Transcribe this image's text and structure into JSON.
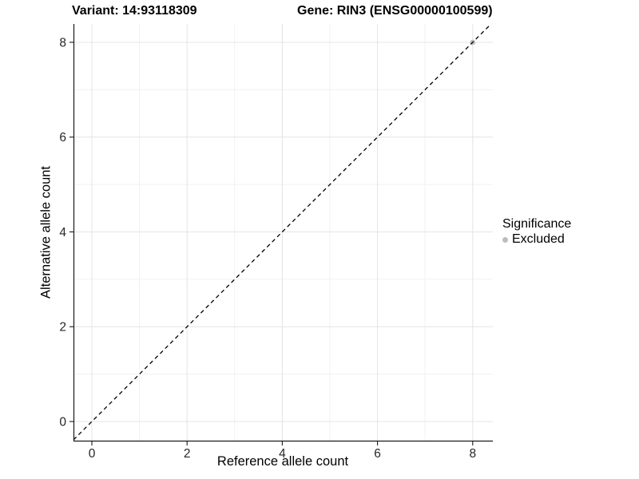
{
  "title": {
    "left": "Variant: 14:93118309",
    "right": "Gene: RIN3 (ENSG00000100599)"
  },
  "axes": {
    "x_label": "Reference allele count",
    "y_label": "Alternative allele count"
  },
  "legend": {
    "title": "Significance",
    "items": [
      {
        "label": "Excluded",
        "color": "#bdbdbd"
      }
    ]
  },
  "chart_data": {
    "type": "scatter",
    "title": "Variant: 14:93118309 | Gene: RIN3 (ENSG00000100599)",
    "xlabel": "Reference allele count",
    "ylabel": "Alternative allele count",
    "xlim": [
      -0.386,
      8.423
    ],
    "ylim": [
      -0.421,
      8.387
    ],
    "x_ticks": [
      0,
      2,
      4,
      6,
      8
    ],
    "y_ticks": [
      0,
      2,
      4,
      6,
      8
    ],
    "x_minor_ticks": [
      1,
      3,
      5,
      7
    ],
    "y_minor_ticks": [
      1,
      3,
      5,
      7
    ],
    "grid": true,
    "legend_position": "right",
    "series": [
      {
        "name": "Excluded",
        "points": [
          {
            "x": 8,
            "y": 8
          }
        ],
        "color": "#bdbdbd"
      }
    ],
    "reference_line": {
      "slope": 1,
      "intercept": 0,
      "style": "dashed",
      "color": "#000000"
    },
    "colors": {
      "background": "#ffffff",
      "grid_major": "#e4e4e4",
      "grid_minor": "#f1f1f1",
      "axis_line": "#1a1a1a",
      "tick_label": "#262626",
      "point": "#bdbdbd"
    }
  }
}
